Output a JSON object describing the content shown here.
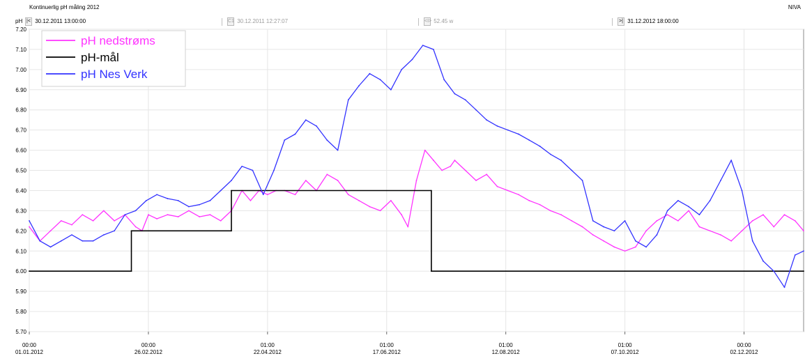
{
  "header": {
    "title": "Kontinuerlig pH måling 2012",
    "org": "NIVA",
    "unit": "pH",
    "start_time": "30.12.2011 13:00:00",
    "cursor_time": "30.12.2011 12:27:07",
    "span": "52.45 w",
    "end_time": "31.12.2012 18:00:00",
    "start_btn": "|<",
    "cursor_btn": "C1",
    "span_btn": "<I>",
    "end_btn": ">|"
  },
  "chart_data": {
    "type": "line",
    "title": "Kontinuerlig pH måling 2012",
    "ylabel": "pH",
    "ylim": [
      5.7,
      7.2
    ],
    "y_ticks": [
      "7.20",
      "7.10",
      "7.00",
      "6.90",
      "6.80",
      "6.70",
      "6.60",
      "6.50",
      "6.40",
      "6.30",
      "6.20",
      "6.10",
      "6.00",
      "5.90",
      "5.80",
      "5.70"
    ],
    "x_days_range": [
      0,
      364
    ],
    "x_ticks": [
      {
        "day": 0,
        "time": "00:00",
        "date": "01.01.2012"
      },
      {
        "day": 56,
        "time": "00:00",
        "date": "26.02.2012"
      },
      {
        "day": 112,
        "time": "01:00",
        "date": "22.04.2012"
      },
      {
        "day": 168,
        "time": "01:00",
        "date": "17.06.2012"
      },
      {
        "day": 224,
        "time": "01:00",
        "date": "12.08.2012"
      },
      {
        "day": 280,
        "time": "01:00",
        "date": "07.10.2012"
      },
      {
        "day": 336,
        "time": "00:00",
        "date": "02.12.2012"
      }
    ],
    "grid": true,
    "legend": "top-left",
    "series": [
      {
        "name": "pH nedstrøms",
        "color": "#ff33ff",
        "x": [
          0,
          5,
          10,
          15,
          20,
          25,
          30,
          35,
          40,
          45,
          50,
          53,
          56,
          60,
          65,
          70,
          75,
          80,
          85,
          90,
          95,
          100,
          104,
          108,
          112,
          116,
          120,
          125,
          130,
          135,
          140,
          145,
          150,
          155,
          160,
          165,
          170,
          175,
          178,
          182,
          186,
          190,
          194,
          198,
          200,
          205,
          210,
          215,
          220,
          225,
          230,
          235,
          240,
          245,
          250,
          255,
          260,
          265,
          270,
          275,
          280,
          285,
          290,
          295,
          300,
          305,
          310,
          315,
          320,
          325,
          330,
          335,
          340,
          345,
          350,
          355,
          360,
          364
        ],
        "y": [
          6.22,
          6.15,
          6.2,
          6.25,
          6.23,
          6.28,
          6.25,
          6.3,
          6.25,
          6.28,
          6.22,
          6.2,
          6.28,
          6.26,
          6.28,
          6.27,
          6.3,
          6.27,
          6.28,
          6.25,
          6.3,
          6.4,
          6.35,
          6.4,
          6.38,
          6.4,
          6.4,
          6.38,
          6.45,
          6.4,
          6.48,
          6.45,
          6.38,
          6.35,
          6.32,
          6.3,
          6.35,
          6.28,
          6.22,
          6.45,
          6.6,
          6.55,
          6.5,
          6.52,
          6.55,
          6.5,
          6.45,
          6.48,
          6.42,
          6.4,
          6.38,
          6.35,
          6.33,
          6.3,
          6.28,
          6.25,
          6.22,
          6.18,
          6.15,
          6.12,
          6.1,
          6.12,
          6.2,
          6.25,
          6.28,
          6.25,
          6.3,
          6.22,
          6.2,
          6.18,
          6.15,
          6.2,
          6.25,
          6.28,
          6.22,
          6.28,
          6.25,
          6.2
        ]
      },
      {
        "name": "pH-mål",
        "color": "#000000",
        "x": [
          0,
          48,
          48,
          95,
          95,
          189,
          189,
          364
        ],
        "y": [
          6.0,
          6.0,
          6.2,
          6.2,
          6.4,
          6.4,
          6.0,
          6.0
        ]
      },
      {
        "name": "pH Nes Verk",
        "color": "#3333ff",
        "x": [
          0,
          5,
          10,
          15,
          20,
          25,
          30,
          35,
          40,
          45,
          50,
          55,
          60,
          65,
          70,
          75,
          80,
          85,
          90,
          95,
          100,
          105,
          110,
          115,
          120,
          125,
          130,
          135,
          140,
          145,
          150,
          155,
          160,
          165,
          170,
          175,
          180,
          185,
          190,
          195,
          200,
          205,
          210,
          215,
          220,
          225,
          230,
          235,
          240,
          245,
          250,
          255,
          260,
          265,
          270,
          275,
          280,
          285,
          290,
          295,
          300,
          305,
          310,
          315,
          320,
          325,
          330,
          335,
          340,
          345,
          350,
          355,
          360,
          364
        ],
        "y": [
          6.25,
          6.15,
          6.12,
          6.15,
          6.18,
          6.15,
          6.15,
          6.18,
          6.2,
          6.28,
          6.3,
          6.35,
          6.38,
          6.36,
          6.35,
          6.32,
          6.33,
          6.35,
          6.4,
          6.45,
          6.52,
          6.5,
          6.38,
          6.5,
          6.65,
          6.68,
          6.75,
          6.72,
          6.65,
          6.6,
          6.85,
          6.92,
          6.98,
          6.95,
          6.9,
          7.0,
          7.05,
          7.12,
          7.1,
          6.95,
          6.88,
          6.85,
          6.8,
          6.75,
          6.72,
          6.7,
          6.68,
          6.65,
          6.62,
          6.58,
          6.55,
          6.5,
          6.45,
          6.25,
          6.22,
          6.2,
          6.25,
          6.15,
          6.12,
          6.18,
          6.3,
          6.35,
          6.32,
          6.28,
          6.35,
          6.45,
          6.55,
          6.4,
          6.15,
          6.05,
          6.0,
          5.92,
          6.08,
          6.1
        ]
      }
    ]
  }
}
